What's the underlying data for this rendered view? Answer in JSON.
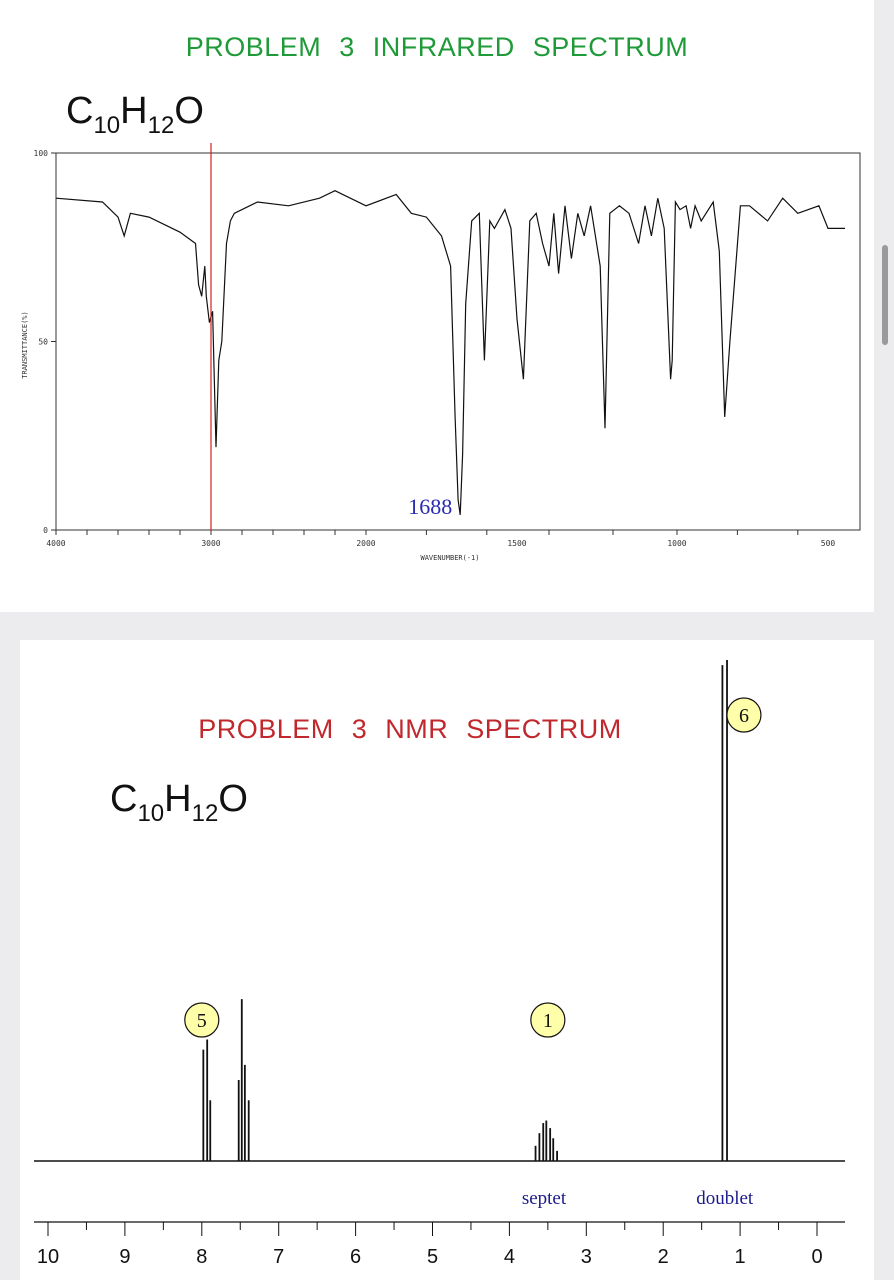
{
  "ir": {
    "title": "PROBLEM  3   INFRARED SPECTRUM",
    "formula": {
      "C": "C",
      "c_sub": "10",
      "H": "H",
      "h_sub": "12",
      "O": "O"
    }
  },
  "nmr": {
    "title": "PROBLEM  3   NMR SPECTRUM",
    "formula": {
      "C": "C",
      "c_sub": "10",
      "H": "H",
      "h_sub": "12",
      "O": "O"
    }
  },
  "chart_data": [
    {
      "type": "line",
      "title": "PROBLEM  3   INFRARED SPECTRUM",
      "xlabel": "WAVENUMBER(-1)",
      "ylabel": "TRANSMITTANCE(%)",
      "xlim": [
        4000,
        450
      ],
      "ylim": [
        0,
        100
      ],
      "x_ticks": [
        "4000",
        "3000",
        "2000",
        "1500",
        "1000",
        "500"
      ],
      "y_ticks": [
        "100",
        "50",
        "0"
      ],
      "marker_line": {
        "x": 3000,
        "color": "#d42020"
      },
      "annotation": {
        "text": "1688",
        "x": 1688,
        "color": "#2a2ab0"
      },
      "x": [
        4000,
        3700,
        3600,
        3560,
        3520,
        3400,
        3200,
        3100,
        3080,
        3060,
        3040,
        3030,
        3010,
        2990,
        2968,
        2950,
        2930,
        2900,
        2875,
        2850,
        2800,
        2700,
        2500,
        2300,
        2200,
        2000,
        1900,
        1850,
        1800,
        1750,
        1720,
        1705,
        1695,
        1688,
        1680,
        1670,
        1650,
        1625,
        1608,
        1590,
        1575,
        1540,
        1520,
        1500,
        1480,
        1460,
        1440,
        1420,
        1400,
        1385,
        1370,
        1350,
        1330,
        1310,
        1290,
        1270,
        1240,
        1225,
        1210,
        1180,
        1150,
        1120,
        1100,
        1080,
        1060,
        1040,
        1020,
        1015,
        1005,
        990,
        970,
        955,
        940,
        920,
        880,
        860,
        842,
        825,
        790,
        760,
        700,
        650,
        600,
        530,
        500,
        450
      ],
      "y": [
        88,
        87,
        83,
        78,
        84,
        83,
        79,
        76,
        65,
        62,
        70,
        62,
        55,
        58,
        22,
        45,
        50,
        76,
        82,
        84,
        85,
        87,
        86,
        88,
        90,
        86,
        89,
        84,
        83,
        78,
        70,
        30,
        8,
        4,
        20,
        60,
        82,
        84,
        45,
        82,
        80,
        85,
        80,
        56,
        40,
        82,
        84,
        76,
        70,
        84,
        68,
        86,
        72,
        84,
        78,
        86,
        70,
        27,
        84,
        86,
        84,
        76,
        86,
        78,
        88,
        80,
        40,
        45,
        87,
        85,
        86,
        80,
        86,
        82,
        87,
        74,
        30,
        50,
        86,
        86,
        82,
        88,
        84,
        86,
        80,
        80
      ]
    },
    {
      "type": "line",
      "title": "PROBLEM  3   NMR SPECTRUM",
      "xlabel": "",
      "ylabel": "",
      "xlim": [
        10,
        0
      ],
      "x_ticks": [
        "10",
        "9",
        "8",
        "7",
        "6",
        "5",
        "4",
        "3",
        "2",
        "1",
        "0"
      ],
      "peaks": [
        {
          "ppm": 7.98,
          "height": 0.22
        },
        {
          "ppm": 7.93,
          "height": 0.24
        },
        {
          "ppm": 7.89,
          "height": 0.12
        },
        {
          "ppm": 7.52,
          "height": 0.16
        },
        {
          "ppm": 7.48,
          "height": 0.32
        },
        {
          "ppm": 7.44,
          "height": 0.19
        },
        {
          "ppm": 7.39,
          "height": 0.12
        },
        {
          "ppm": 3.66,
          "height": 0.03
        },
        {
          "ppm": 3.61,
          "height": 0.055
        },
        {
          "ppm": 3.56,
          "height": 0.075
        },
        {
          "ppm": 3.52,
          "height": 0.08
        },
        {
          "ppm": 3.47,
          "height": 0.065
        },
        {
          "ppm": 3.43,
          "height": 0.045
        },
        {
          "ppm": 3.38,
          "height": 0.02
        },
        {
          "ppm": 1.23,
          "height": 0.98
        },
        {
          "ppm": 1.17,
          "height": 0.99
        }
      ],
      "integrations": [
        {
          "label": "5",
          "ppm": 8.0
        },
        {
          "label": "1",
          "ppm": 3.5
        },
        {
          "label": "6",
          "ppm": 0.95
        }
      ],
      "multiplicity_labels": [
        {
          "text": "septet",
          "ppm": 3.55
        },
        {
          "text": "doublet",
          "ppm": 1.2
        }
      ],
      "annotation_color": "#1a1a8a",
      "circle_fill": "#ffffaa"
    }
  ]
}
